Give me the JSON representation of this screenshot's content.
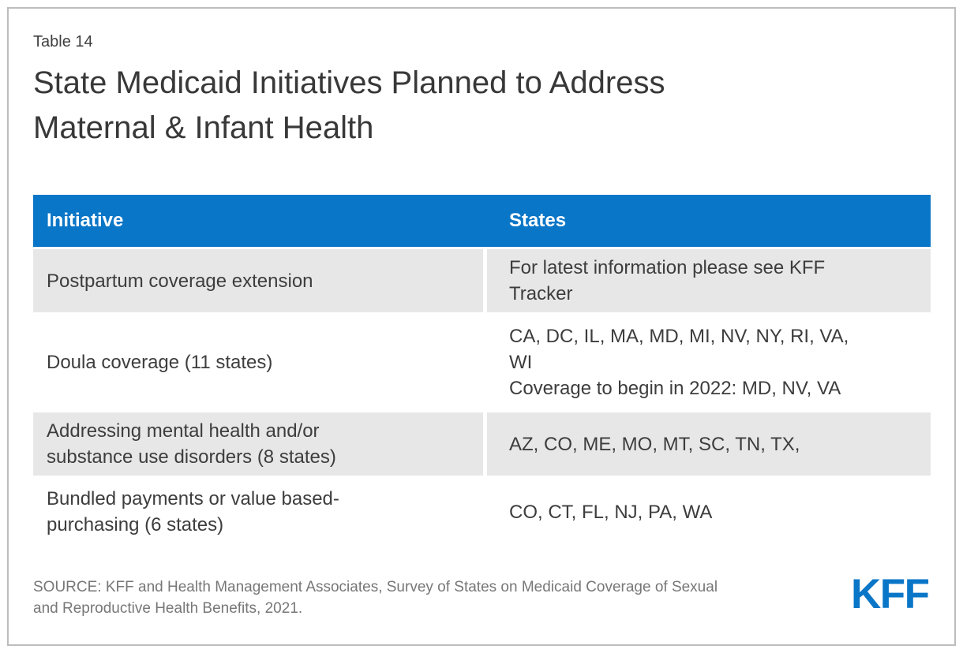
{
  "chart_data": {
    "type": "table",
    "label": "Table 14",
    "title": "State Medicaid Initiatives Planned to Address\nMaternal & Infant Health",
    "columns": [
      "Initiative",
      "States"
    ],
    "rows": [
      {
        "initiative": "Postpartum coverage extension",
        "states": "For latest information please see KFF\nTracker"
      },
      {
        "initiative": "Doula coverage (11 states)",
        "states": "CA, DC, IL, MA, MD, MI, NV, NY, RI, VA,\nWI\nCoverage to begin in 2022: MD, NV, VA"
      },
      {
        "initiative": "Addressing mental health and/or\nsubstance use disorders (8 states)",
        "states": "AZ, CO, ME, MO, MT, SC, TN, TX,"
      },
      {
        "initiative": "Bundled payments or value based-\npurchasing (6 states)",
        "states": "CO, CT, FL, NJ, PA, WA"
      }
    ],
    "source": "SOURCE: KFF and Health Management Associates, Survey of States on Medicaid Coverage of Sexual\nand Reproductive Health Benefits, 2021.",
    "logo": "KFF",
    "layout": {
      "legend_position": "none",
      "grid": "off"
    }
  },
  "colors": {
    "brand_blue": "#0a76c7",
    "row_gray": "#e7e7e7",
    "body_text": "#3d3d3d",
    "source_text": "#777777",
    "frame_border": "#bdbdbd"
  }
}
